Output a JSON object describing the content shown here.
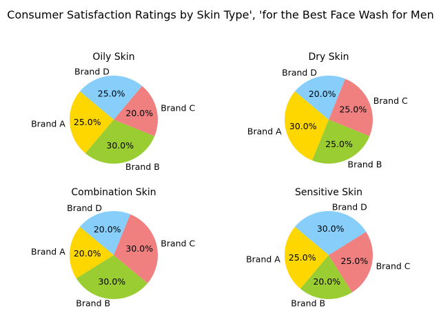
{
  "chart_data": {
    "type": "pie",
    "title": "Consumer Satisfaction Ratings by Skin Type', 'for the Best Face Wash for Men",
    "labels": [
      "Brand A",
      "Brand B",
      "Brand C",
      "Brand D"
    ],
    "colors": [
      "#ffd700",
      "#9acd32",
      "#f08080",
      "#87cefa"
    ],
    "start_angle_deg": 140,
    "autopct_format": "%.1f%%",
    "charts": [
      {
        "title": "Oily Skin",
        "values": [
          25,
          30,
          20,
          25
        ]
      },
      {
        "title": "Dry Skin",
        "values": [
          30,
          25,
          25,
          20
        ]
      },
      {
        "title": "Combination Skin",
        "values": [
          20,
          30,
          30,
          20
        ]
      },
      {
        "title": "Sensitive Skin",
        "values": [
          25,
          20,
          25,
          30
        ]
      }
    ]
  }
}
